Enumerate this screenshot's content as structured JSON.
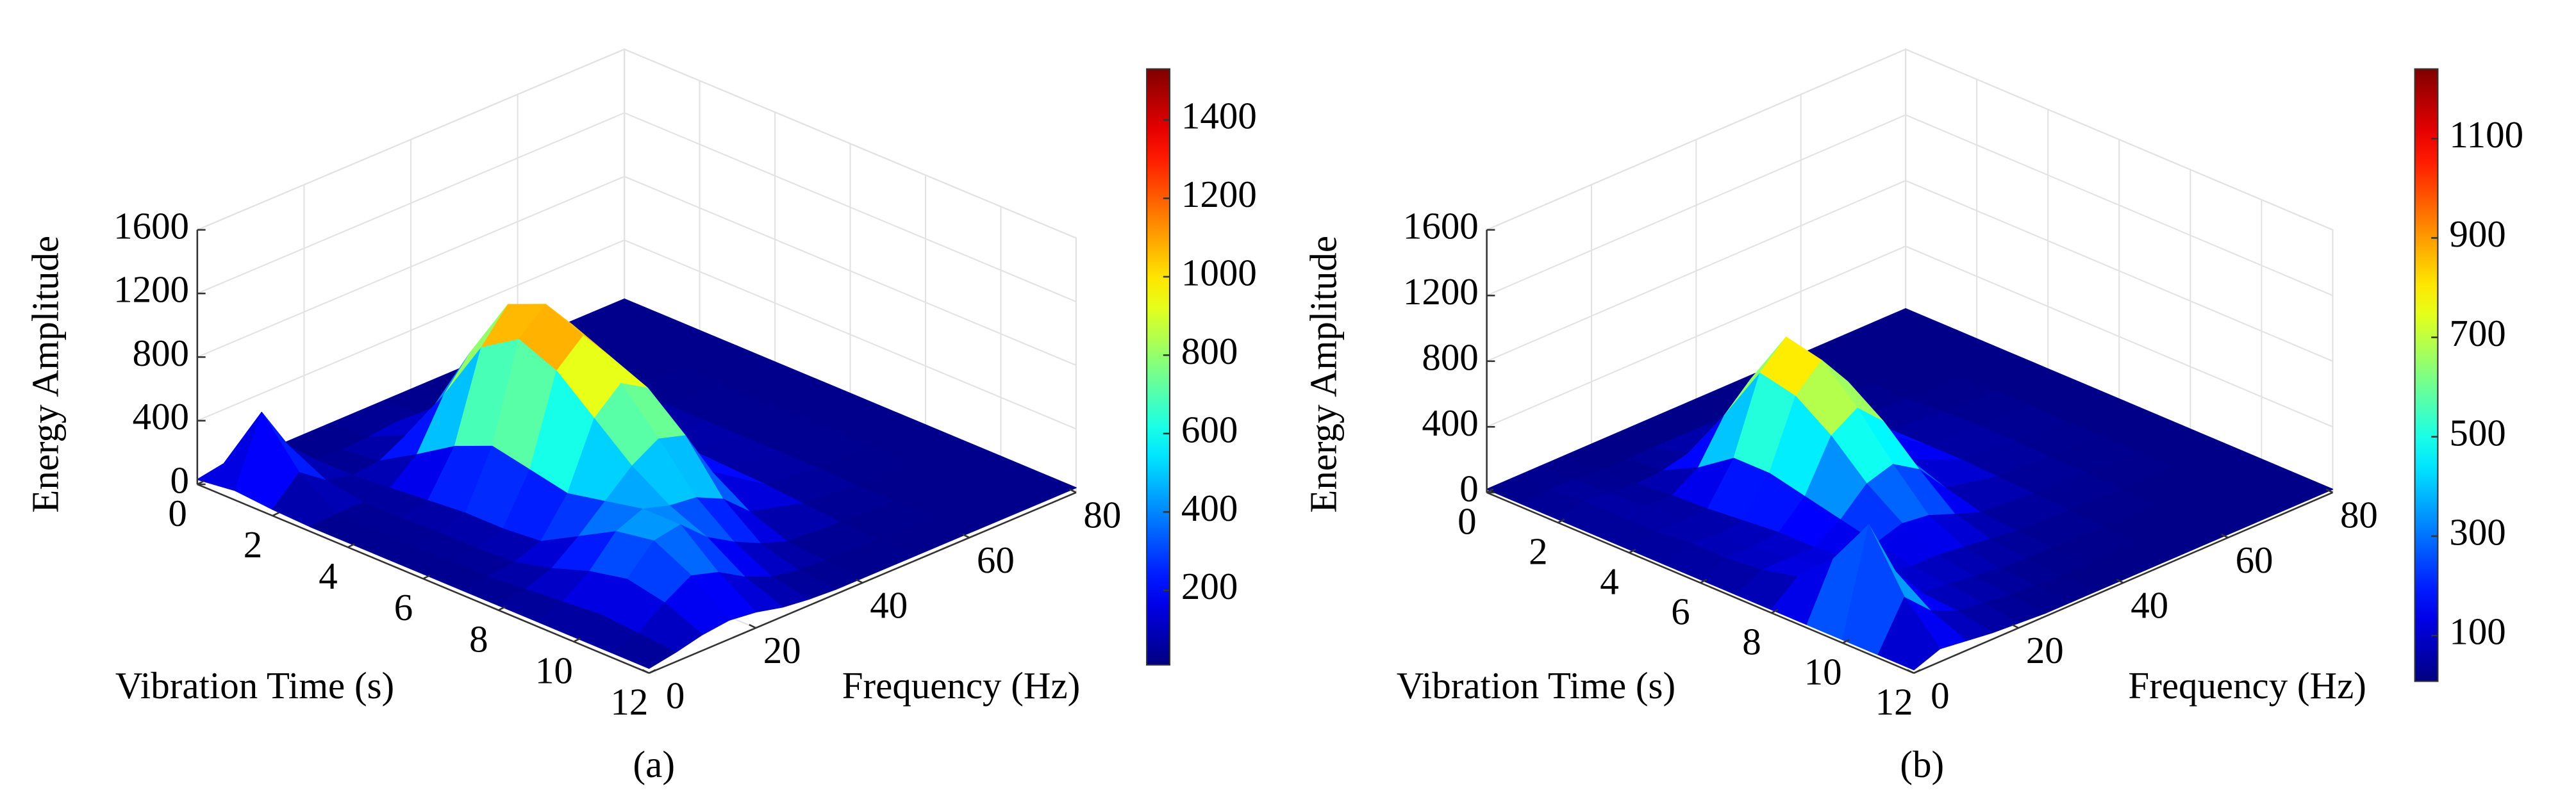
{
  "chart_data": [
    {
      "type": "surface",
      "caption": "(a)",
      "xlabel": "Vibration Time (s)",
      "ylabel": "Frequency (Hz)",
      "zlabel": "Energy Amplitude",
      "colormap": "jet",
      "grid": true,
      "x": [
        0,
        1,
        2,
        3,
        4,
        5,
        6,
        7,
        8,
        9,
        10,
        11,
        12
      ],
      "y": [
        0,
        5,
        10,
        15,
        20,
        25,
        30,
        35,
        40,
        50,
        60,
        70,
        80
      ],
      "z": [
        [
          30,
          60,
          40,
          30,
          30,
          30,
          30,
          30,
          30,
          30,
          30,
          30,
          30
        ],
        [
          60,
          480,
          200,
          40,
          30,
          40,
          60,
          40,
          30,
          30,
          30,
          30,
          30
        ],
        [
          40,
          200,
          80,
          40,
          60,
          150,
          250,
          150,
          60,
          30,
          30,
          30,
          30
        ],
        [
          30,
          40,
          40,
          60,
          200,
          500,
          700,
          500,
          200,
          60,
          30,
          30,
          30
        ],
        [
          30,
          40,
          40,
          80,
          350,
          900,
          1100,
          850,
          350,
          80,
          40,
          30,
          30
        ],
        [
          30,
          40,
          50,
          100,
          450,
          1050,
          1200,
          1000,
          450,
          100,
          40,
          30,
          30
        ],
        [
          30,
          40,
          50,
          100,
          400,
          950,
          1100,
          900,
          420,
          100,
          40,
          30,
          30
        ],
        [
          30,
          40,
          60,
          120,
          350,
          750,
          900,
          800,
          380,
          90,
          40,
          30,
          30
        ],
        [
          30,
          60,
          120,
          250,
          400,
          550,
          650,
          600,
          300,
          80,
          40,
          30,
          30
        ],
        [
          30,
          80,
          200,
          380,
          450,
          400,
          380,
          300,
          150,
          60,
          30,
          30,
          30
        ],
        [
          30,
          100,
          250,
          420,
          450,
          300,
          200,
          120,
          60,
          40,
          30,
          30,
          30
        ],
        [
          30,
          80,
          200,
          300,
          250,
          150,
          80,
          50,
          40,
          30,
          30,
          30,
          30
        ],
        [
          30,
          60,
          100,
          120,
          100,
          60,
          40,
          30,
          30,
          30,
          30,
          30,
          30
        ]
      ],
      "xlim": [
        0,
        12
      ],
      "xticks": [
        0,
        2,
        4,
        6,
        8,
        10,
        12
      ],
      "ylim": [
        0,
        80
      ],
      "yticks": [
        0,
        20,
        40,
        60,
        80
      ],
      "zlim": [
        0,
        1600
      ],
      "zticks": [
        0,
        400,
        800,
        1200,
        1600
      ],
      "clim": [
        10,
        1530
      ],
      "cticks": [
        200,
        400,
        600,
        800,
        1000,
        1200,
        1400
      ]
    },
    {
      "type": "surface",
      "caption": "(b)",
      "xlabel": "Vibration Time (s)",
      "ylabel": "Frequency (Hz)",
      "zlabel": "Energy Amplitude",
      "colormap": "jet",
      "grid": true,
      "x": [
        0,
        1,
        2,
        3,
        4,
        5,
        6,
        7,
        8,
        9,
        10,
        11,
        12
      ],
      "y": [
        0,
        5,
        10,
        15,
        20,
        25,
        30,
        35,
        40,
        50,
        60,
        70,
        80
      ],
      "z": [
        [
          20,
          20,
          20,
          20,
          20,
          20,
          20,
          20,
          20,
          20,
          20,
          20,
          20
        ],
        [
          20,
          40,
          30,
          20,
          20,
          20,
          20,
          20,
          20,
          20,
          20,
          20,
          20
        ],
        [
          20,
          60,
          40,
          30,
          40,
          80,
          120,
          80,
          40,
          20,
          20,
          20,
          20
        ],
        [
          20,
          60,
          50,
          50,
          150,
          400,
          550,
          400,
          150,
          40,
          20,
          20,
          20
        ],
        [
          20,
          60,
          50,
          60,
          300,
          750,
          900,
          700,
          300,
          60,
          30,
          20,
          20
        ],
        [
          20,
          80,
          60,
          80,
          300,
          700,
          850,
          650,
          280,
          60,
          40,
          20,
          20
        ],
        [
          20,
          80,
          80,
          100,
          250,
          550,
          650,
          500,
          200,
          60,
          40,
          20,
          20
        ],
        [
          20,
          100,
          100,
          100,
          200,
          350,
          400,
          300,
          120,
          50,
          30,
          20,
          20
        ],
        [
          20,
          150,
          150,
          120,
          150,
          200,
          180,
          120,
          60,
          40,
          30,
          20,
          20
        ],
        [
          20,
          350,
          250,
          120,
          100,
          100,
          80,
          60,
          40,
          30,
          20,
          20,
          20
        ],
        [
          20,
          650,
          300,
          100,
          80,
          60,
          40,
          30,
          30,
          20,
          20,
          20,
          20
        ],
        [
          20,
          300,
          150,
          80,
          60,
          40,
          30,
          20,
          20,
          20,
          20,
          20,
          20
        ],
        [
          20,
          80,
          60,
          40,
          30,
          20,
          20,
          20,
          20,
          20,
          20,
          20,
          20
        ]
      ],
      "xlim": [
        0,
        12
      ],
      "xticks": [
        0,
        2,
        4,
        6,
        8,
        10,
        12
      ],
      "ylim": [
        0,
        80
      ],
      "yticks": [
        0,
        20,
        40,
        60,
        80
      ],
      "zlim": [
        0,
        1600
      ],
      "zticks": [
        0,
        400,
        800,
        1200,
        1600
      ],
      "clim": [
        8,
        1240
      ],
      "cticks": [
        100,
        300,
        500,
        700,
        900,
        1100
      ]
    }
  ]
}
